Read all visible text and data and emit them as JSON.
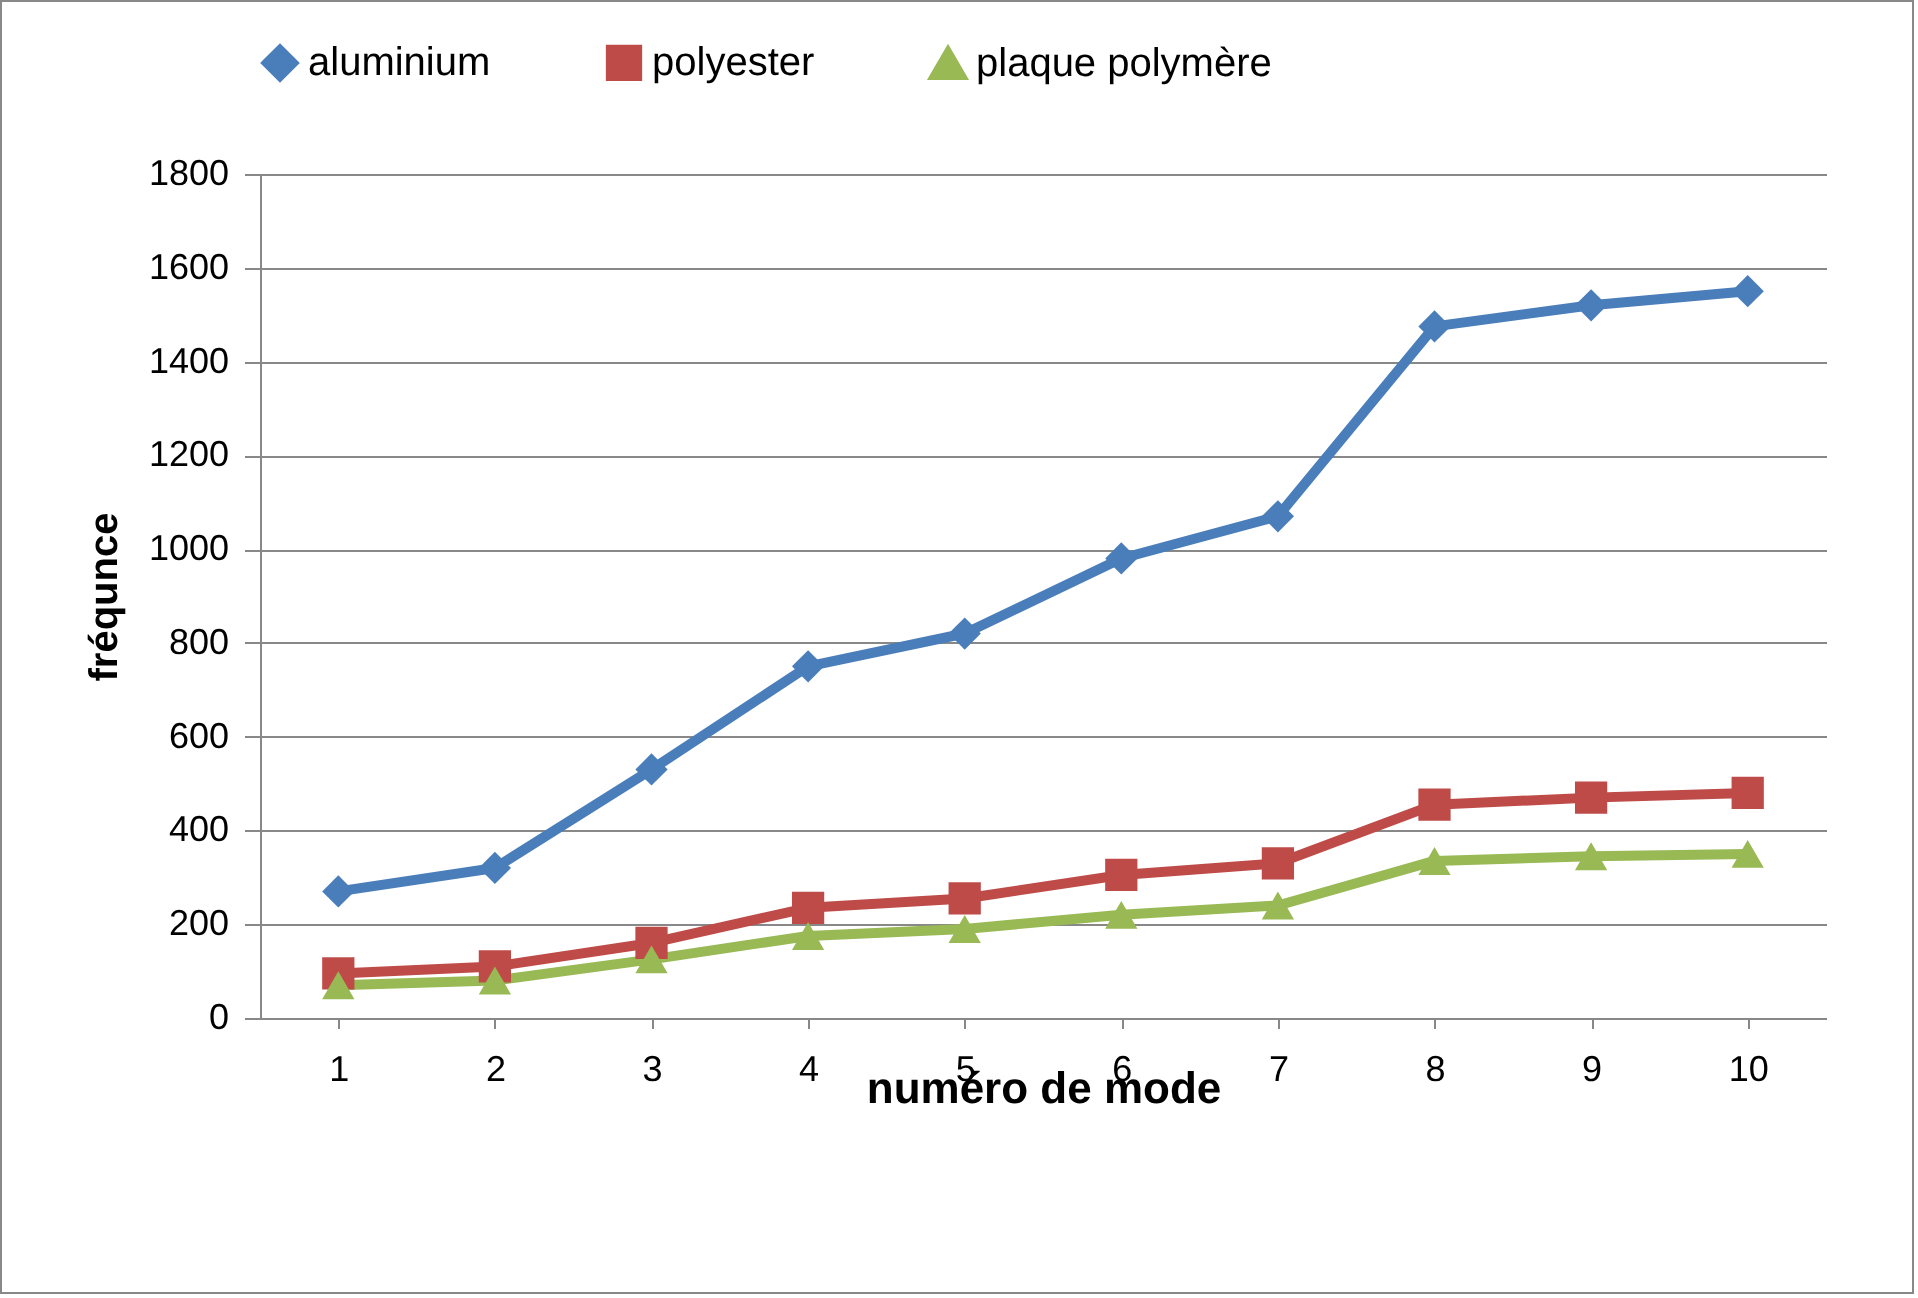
{
  "chart_data": {
    "type": "line",
    "xlabel": "numéro de mode",
    "ylabel": "fréqunce",
    "categories": [
      "1",
      "2",
      "3",
      "4",
      "5",
      "6",
      "7",
      "8",
      "9",
      "10"
    ],
    "series": [
      {
        "name": "aluminium",
        "color": "#4a7ebb",
        "marker": "diamond",
        "values": [
          270,
          320,
          530,
          750,
          820,
          980,
          1070,
          1475,
          1520,
          1550
        ]
      },
      {
        "name": "polyester",
        "color": "#be4b48",
        "marker": "square",
        "values": [
          95,
          110,
          160,
          235,
          255,
          305,
          330,
          455,
          470,
          480
        ]
      },
      {
        "name": "plaque polymère",
        "color": "#98b954",
        "marker": "triangle",
        "values": [
          70,
          80,
          125,
          175,
          190,
          220,
          240,
          335,
          345,
          350
        ]
      }
    ],
    "ylim": [
      0,
      1800
    ],
    "yticks": [
      0,
      200,
      400,
      600,
      800,
      1000,
      1200,
      1400,
      1600,
      1800
    ],
    "grid": "y",
    "legend": "top",
    "line_style": "solid"
  }
}
